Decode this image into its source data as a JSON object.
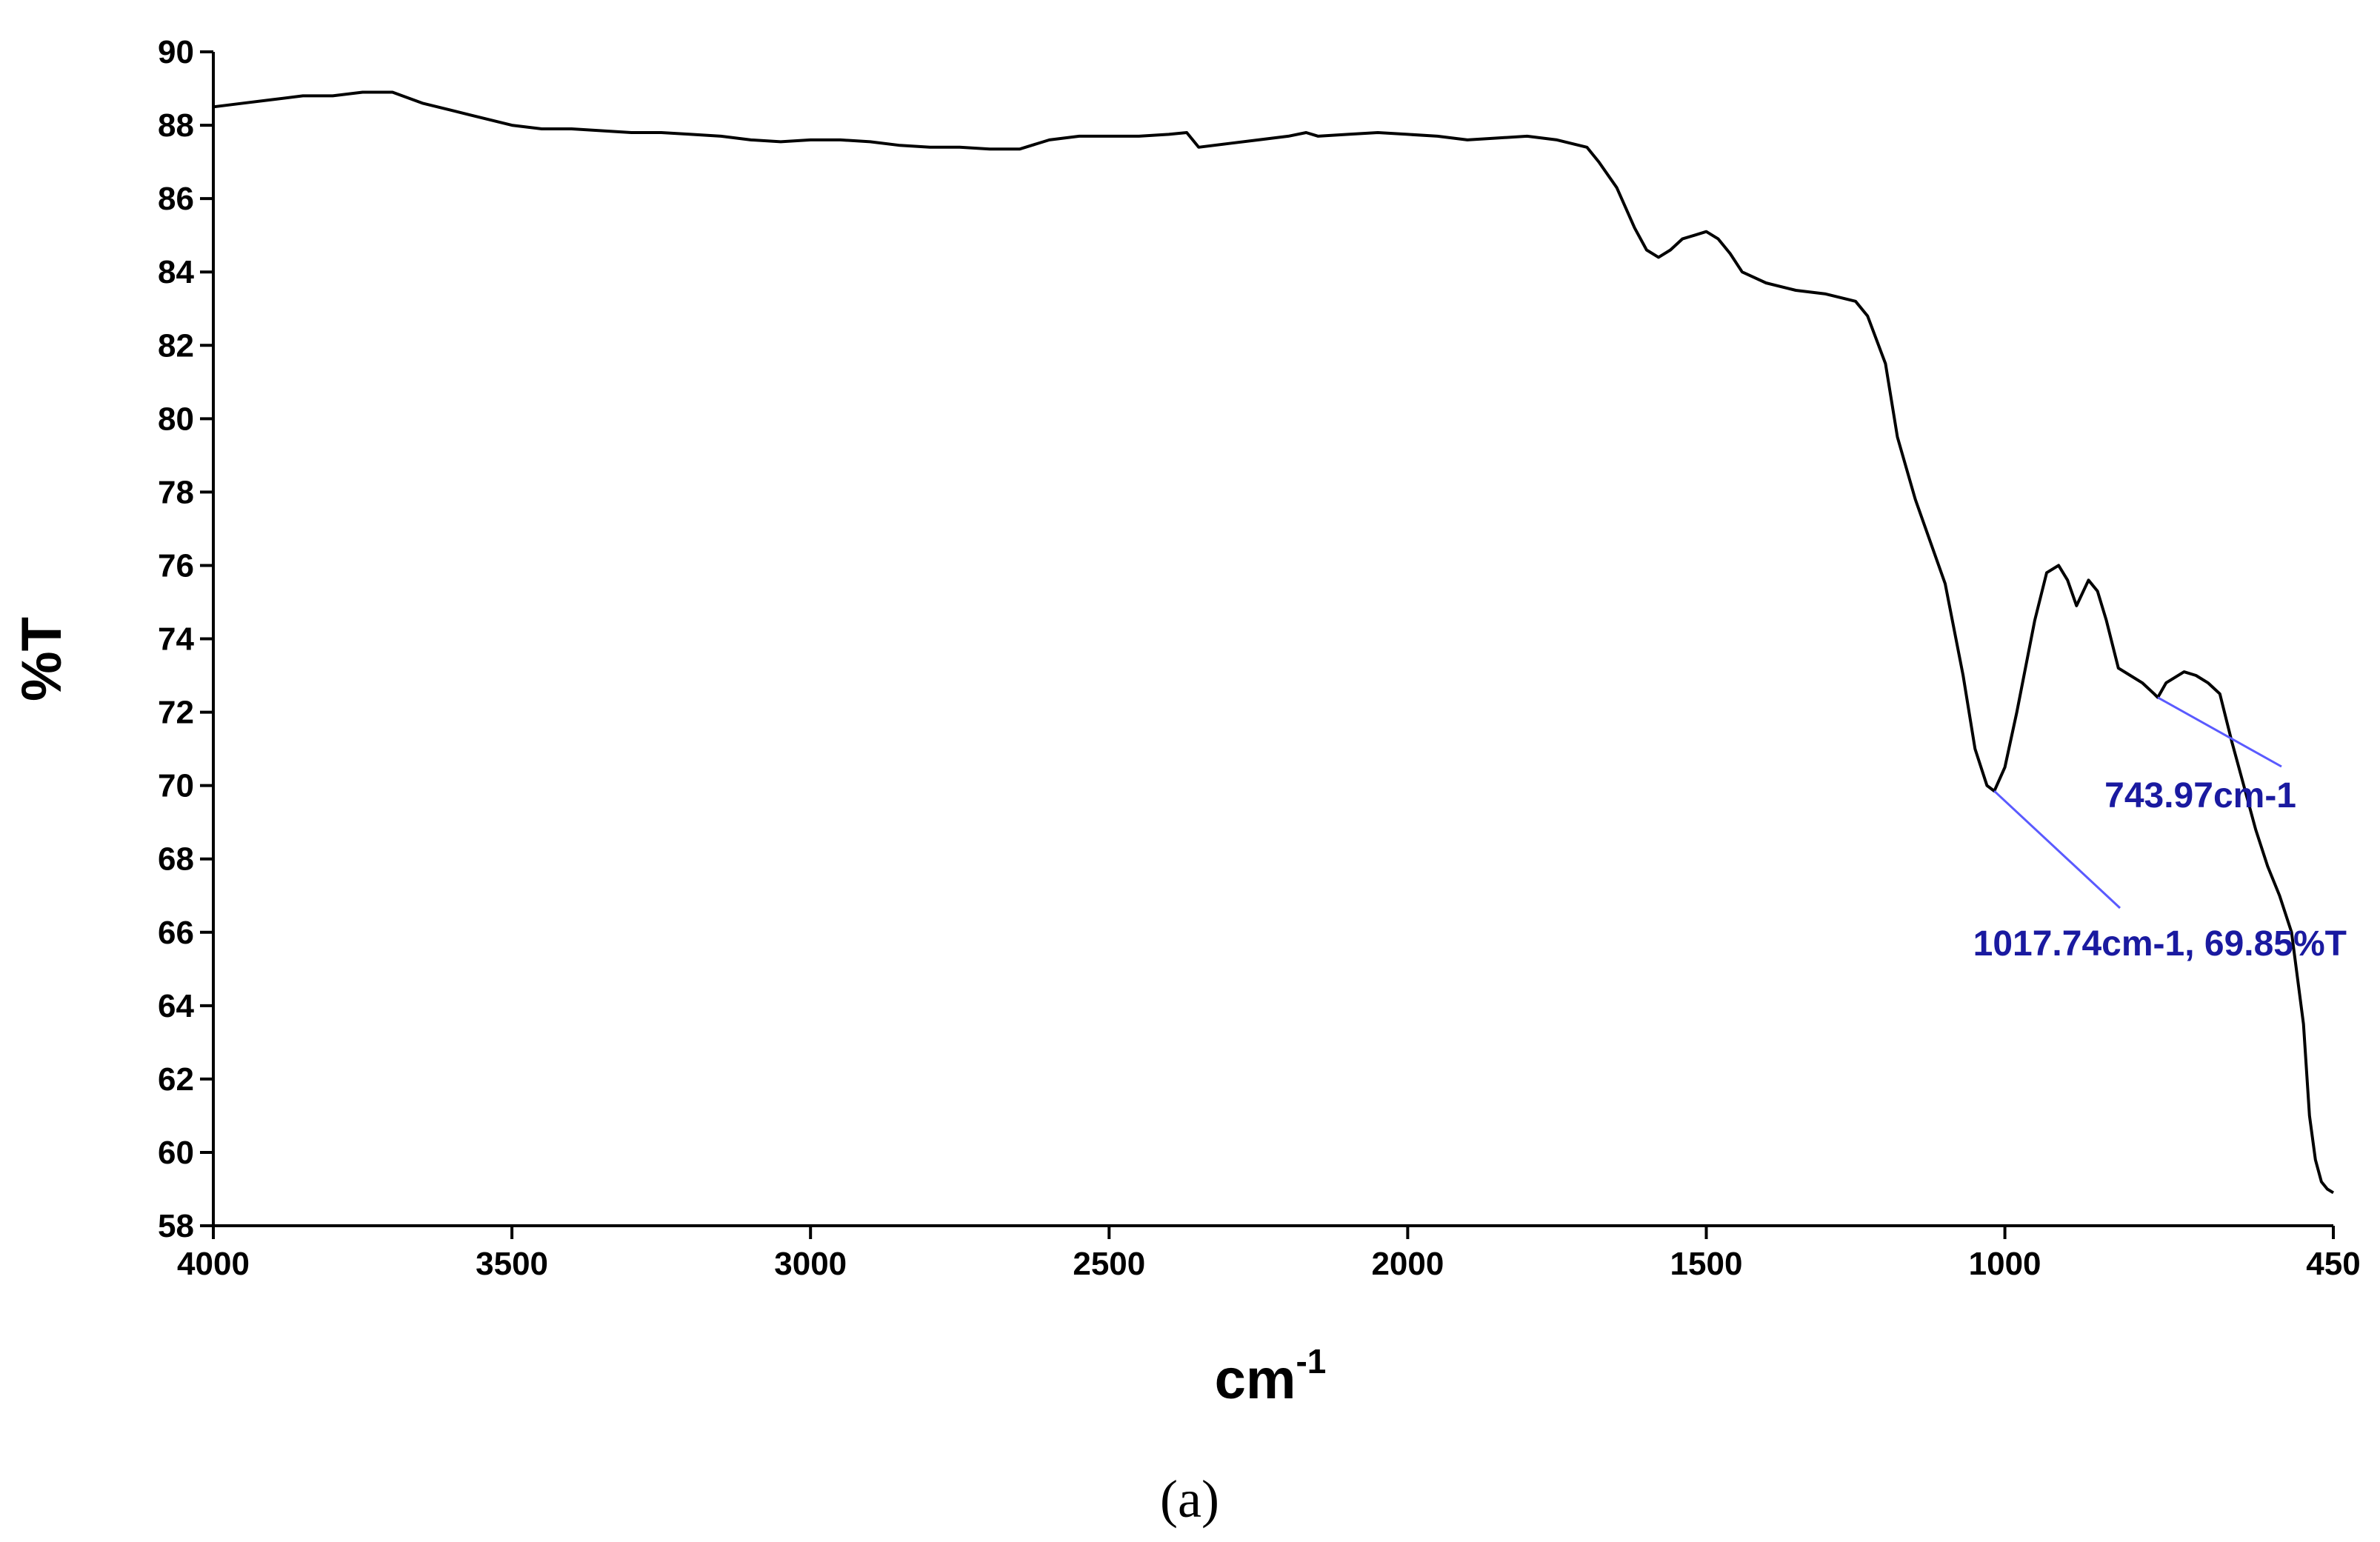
{
  "chart_data": {
    "type": "line",
    "xlabel": "cm",
    "xlabel_sup": "-1",
    "ylabel": "%T",
    "xlim": [
      4000,
      450
    ],
    "ylim": [
      58,
      90
    ],
    "x_reversed": true,
    "x_ticks": [
      4000,
      3500,
      3000,
      2500,
      2000,
      1500,
      1000,
      450
    ],
    "y_ticks": [
      58,
      60,
      62,
      64,
      66,
      68,
      70,
      72,
      74,
      76,
      78,
      80,
      82,
      84,
      86,
      88,
      90
    ],
    "grid": false,
    "line_color": "#000000",
    "annotation_color": "#1a1aa0",
    "series": [
      {
        "x": [
          4000,
          3950,
          3900,
          3850,
          3800,
          3750,
          3700,
          3650,
          3600,
          3550,
          3500,
          3450,
          3400,
          3350,
          3300,
          3250,
          3200,
          3150,
          3100,
          3050,
          3000,
          2950,
          2900,
          2850,
          2800,
          2750,
          2700,
          2650,
          2600,
          2550,
          2500,
          2450,
          2400,
          2370,
          2350,
          2300,
          2250,
          2200,
          2170,
          2150,
          2100,
          2050,
          2000,
          1950,
          1900,
          1850,
          1800,
          1750,
          1700,
          1680,
          1650,
          1620,
          1600,
          1580,
          1560,
          1540,
          1520,
          1500,
          1480,
          1460,
          1440,
          1400,
          1350,
          1300,
          1250,
          1230,
          1200,
          1180,
          1150,
          1100,
          1070,
          1050,
          1030,
          1017.74,
          1000,
          980,
          950,
          930,
          910,
          895,
          880,
          860,
          845,
          830,
          810,
          790,
          770,
          750,
          743.97,
          730,
          700,
          680,
          660,
          640,
          620,
          600,
          580,
          560,
          540,
          520,
          500,
          490,
          480,
          470,
          460,
          450
        ],
        "y": [
          88.5,
          88.6,
          88.7,
          88.8,
          88.8,
          88.9,
          88.9,
          88.6,
          88.4,
          88.2,
          88.0,
          87.9,
          87.9,
          87.85,
          87.8,
          87.8,
          87.75,
          87.7,
          87.6,
          87.55,
          87.6,
          87.6,
          87.55,
          87.45,
          87.4,
          87.4,
          87.35,
          87.35,
          87.6,
          87.7,
          87.7,
          87.7,
          87.75,
          87.8,
          87.4,
          87.5,
          87.6,
          87.7,
          87.8,
          87.7,
          87.75,
          87.8,
          87.75,
          87.7,
          87.6,
          87.65,
          87.7,
          87.6,
          87.4,
          87.0,
          86.3,
          85.2,
          84.6,
          84.4,
          84.6,
          84.9,
          85.0,
          85.1,
          84.9,
          84.5,
          84.0,
          83.7,
          83.5,
          83.4,
          83.2,
          82.8,
          81.5,
          79.5,
          77.8,
          75.5,
          73.0,
          71.0,
          70.0,
          69.85,
          70.5,
          72.0,
          74.5,
          75.8,
          76.0,
          75.6,
          74.9,
          75.6,
          75.3,
          74.5,
          73.2,
          73.0,
          72.8,
          72.5,
          72.4,
          72.8,
          73.1,
          73.0,
          72.8,
          72.5,
          71.2,
          70.0,
          68.8,
          67.8,
          67.0,
          66.0,
          63.5,
          61.0,
          59.8,
          59.2,
          59.0,
          58.9
        ]
      }
    ],
    "annotations": [
      {
        "text": "743.97cm-1",
        "x": 743.97,
        "y": 72.4
      },
      {
        "text": "1017.74cm-1, 69.85%T",
        "x": 1017.74,
        "y": 69.85
      }
    ]
  },
  "caption": "(a)"
}
